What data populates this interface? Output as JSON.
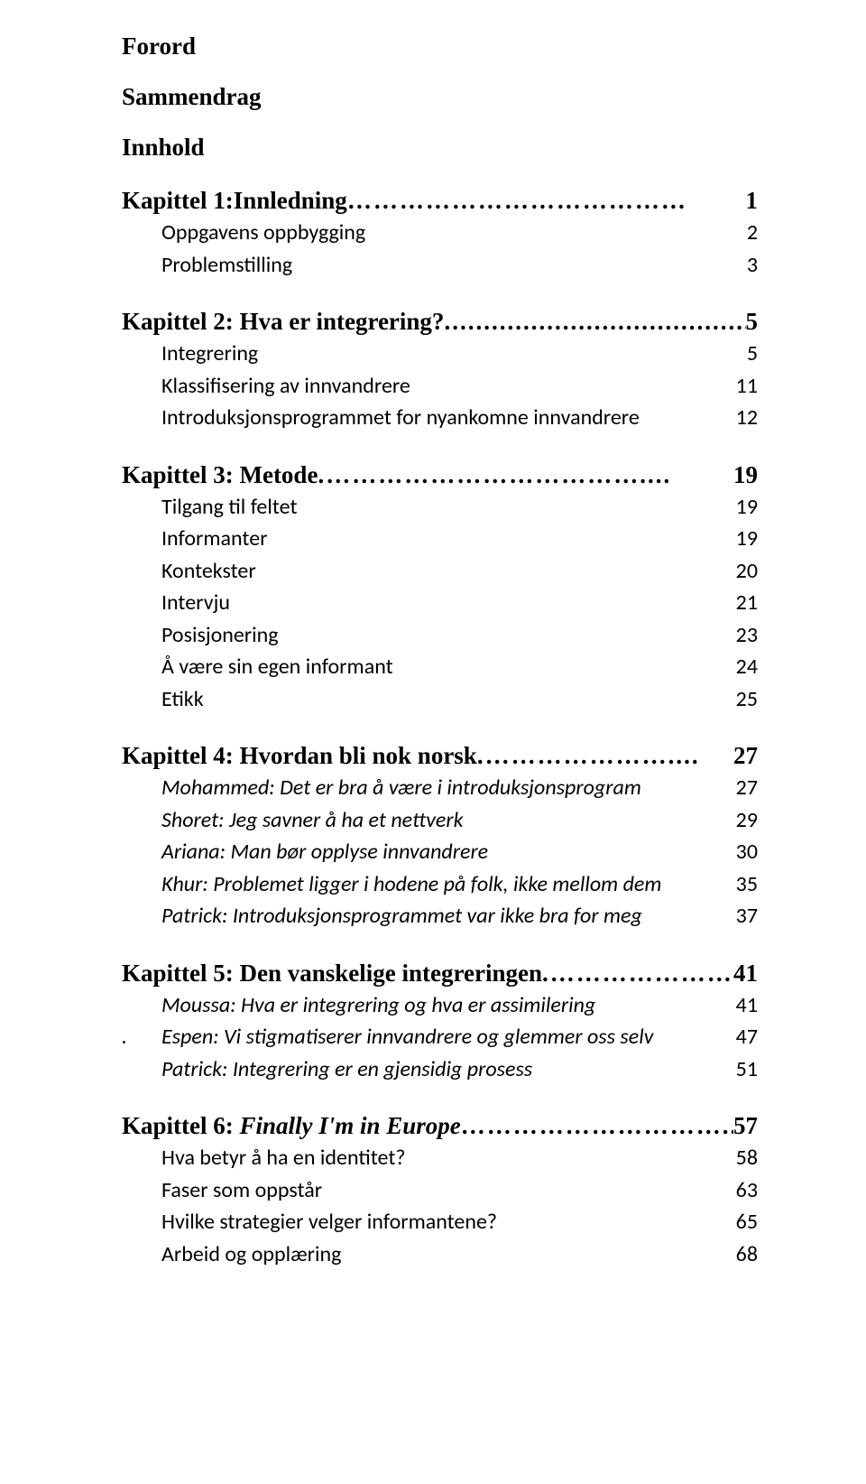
{
  "front_matter": [
    "Forord",
    "Sammendrag",
    "Innhold"
  ],
  "chapters": [
    {
      "title": "Kapittel 1:Innledning",
      "leader": "…………………………………",
      "page": "1",
      "entries": [
        {
          "label": "Oppgavens oppbygging",
          "page": "2",
          "italic": false
        },
        {
          "label": "Problemstilling",
          "page": "3",
          "italic": false
        }
      ]
    },
    {
      "title": "Kapittel 2: Hva er integrering?",
      "leader": "........................................",
      "page": "5",
      "entries": [
        {
          "label": "Integrering",
          "page": "5",
          "italic": false
        },
        {
          "label": "Klassifisering av innvandrere",
          "page": "11",
          "italic": false
        },
        {
          "label": "Introduksjonsprogrammet for nyankomne innvandrere",
          "page": "12",
          "italic": false
        }
      ]
    },
    {
      "title": "Kapittel 3: Metode",
      "leader": ".………………………………....",
      "page": "19",
      "entries": [
        {
          "label": "Tilgang til feltet",
          "page": "19",
          "italic": false
        },
        {
          "label": "Informanter",
          "page": "19",
          "italic": false
        },
        {
          "label": "Kontekster",
          "page": "20",
          "italic": false
        },
        {
          "label": "Intervju",
          "page": "21",
          "italic": false
        },
        {
          "label": "Posisjonering",
          "page": "23",
          "italic": false
        },
        {
          "label": "Å være sin egen informant",
          "page": "24",
          "italic": false
        },
        {
          "label": "Etikk",
          "page": "25",
          "italic": false
        }
      ]
    },
    {
      "title": "Kapittel 4: Hvordan bli nok norsk",
      "leader": ".…………………....",
      "page": "27",
      "entries": [
        {
          "label": "Mohammed: Det er bra å være i introduksjonsprogram",
          "page": "27",
          "italic": true
        },
        {
          "label": "Shoret: Jeg savner å ha et nettverk",
          "page": "29",
          "italic": true
        },
        {
          "label": "Ariana: Man bør opplyse innvandrere",
          "page": "30",
          "italic": true
        },
        {
          "label": "Khur: Problemet ligger i hodene på folk, ikke mellom dem",
          "page": "35",
          "italic": true
        },
        {
          "label": "Patrick: Introduksjonsprogrammet var ikke bra for meg",
          "page": "37",
          "italic": true
        }
      ]
    },
    {
      "title": "Kapittel 5: Den vanskelige integreringen",
      "leader": ".…………………..",
      "page": "41",
      "entries": [
        {
          "label": "Moussa: Hva er integrering og hva er assimilering",
          "page": "41",
          "italic": true
        },
        {
          "label": "Espen: Vi stigmatiserer innvandrere og glemmer oss selv",
          "page": "47",
          "italic": true,
          "hanging_dot": "."
        },
        {
          "label": "Patrick: Integrering er en gjensidig prosess",
          "page": "51",
          "italic": true
        }
      ]
    },
    {
      "title_prefix": "Kapittel 6: ",
      "title_italic": "Finally I'm in Europe",
      "leader": "…………………………....",
      "page": "57",
      "entries": [
        {
          "label": "Hva betyr å ha en identitet?",
          "page": "58",
          "italic": false
        },
        {
          "label": "Faser som oppstår",
          "page": "63",
          "italic": false
        },
        {
          "label": "Hvilke strategier velger informantene?",
          "page": "65",
          "italic": false
        },
        {
          "label": "Arbeid og opplæring",
          "page": "68",
          "italic": false
        }
      ]
    }
  ]
}
